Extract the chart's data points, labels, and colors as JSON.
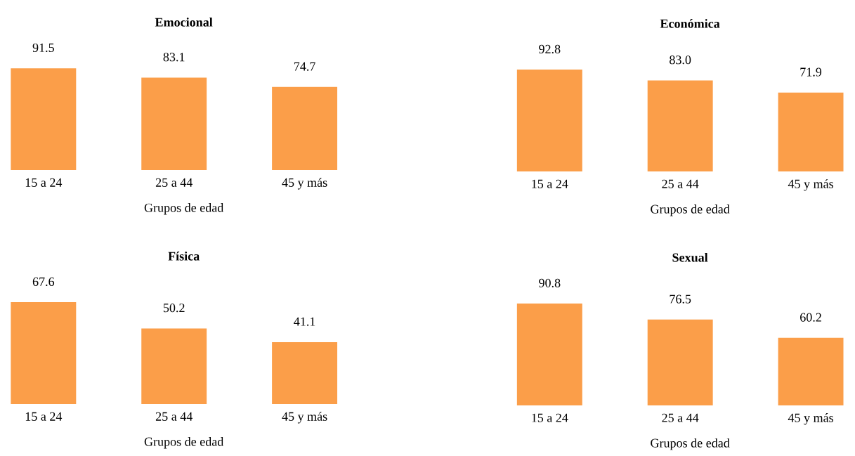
{
  "chart_data": [
    {
      "type": "bar",
      "title": "Emocional",
      "xlabel": "Grupos de edad",
      "categories": [
        "15 a 24",
        "25 a 44",
        "45 y más"
      ],
      "values": [
        91.5,
        83.1,
        74.7
      ],
      "value_labels": [
        "91.5",
        "83.1",
        "74.7"
      ],
      "color": "#fb9e49"
    },
    {
      "type": "bar",
      "title": "Económica",
      "xlabel": "Grupos de edad",
      "categories": [
        "15 a 24",
        "25 a 44",
        "45 y más"
      ],
      "values": [
        92.8,
        83.0,
        71.9
      ],
      "value_labels": [
        "92.8",
        "83.0",
        "71.9"
      ],
      "color": "#fb9e49"
    },
    {
      "type": "bar",
      "title": "Física",
      "xlabel": "Grupos de edad",
      "categories": [
        "15 a 24",
        "25 a 44",
        "45 y más"
      ],
      "values": [
        67.6,
        50.2,
        41.1
      ],
      "value_labels": [
        "67.6",
        "50.2",
        "41.1"
      ],
      "color": "#fb9e49"
    },
    {
      "type": "bar",
      "title": "Sexual",
      "xlabel": "Grupos de edad",
      "categories": [
        "15 a 24",
        "25 a 44",
        "45 y más"
      ],
      "values": [
        90.8,
        76.5,
        60.2
      ],
      "value_labels": [
        "90.8",
        "76.5",
        "60.2"
      ],
      "color": "#fb9e49"
    }
  ]
}
